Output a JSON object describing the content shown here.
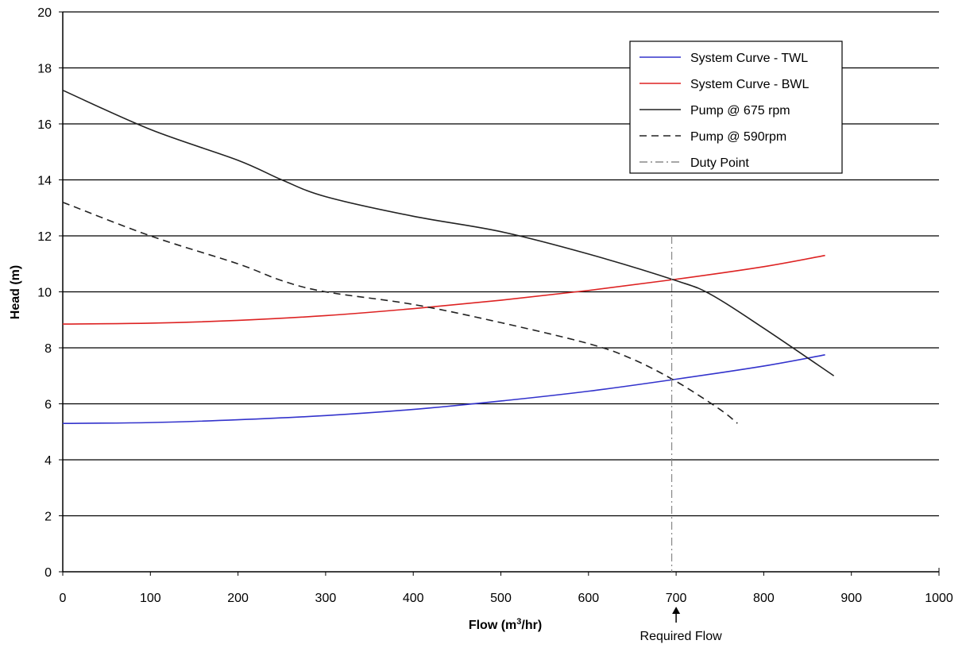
{
  "chart_data": {
    "type": "line",
    "title": "",
    "xlabel": {
      "prefix": "Flow (m",
      "sup": "3",
      "suffix": "/hr)"
    },
    "ylabel": "Head (m)",
    "xlim": [
      0,
      1000
    ],
    "ylim": [
      0,
      20
    ],
    "xticks": [
      0,
      100,
      200,
      300,
      400,
      500,
      600,
      700,
      800,
      900,
      1000
    ],
    "yticks": [
      0,
      2,
      4,
      6,
      8,
      10,
      12,
      14,
      16,
      18,
      20
    ],
    "grid": "horizontal",
    "legend_position": "top-right",
    "series": [
      {
        "name": "System Curve - TWL",
        "color": "#3333cc",
        "dash": "solid",
        "x": [
          0,
          100,
          200,
          300,
          400,
          500,
          600,
          700,
          800,
          870
        ],
        "y": [
          5.3,
          5.33,
          5.43,
          5.58,
          5.8,
          6.1,
          6.45,
          6.88,
          7.35,
          7.75
        ]
      },
      {
        "name": "System Curve - BWL",
        "color": "#dd2222",
        "dash": "solid",
        "x": [
          0,
          100,
          200,
          300,
          400,
          500,
          600,
          700,
          800,
          870
        ],
        "y": [
          8.85,
          8.88,
          8.98,
          9.15,
          9.4,
          9.7,
          10.05,
          10.45,
          10.9,
          11.3
        ]
      },
      {
        "name": "Pump @ 675 rpm",
        "color": "#222222",
        "dash": "solid",
        "x": [
          0,
          100,
          200,
          250,
          300,
          400,
          500,
          600,
          700,
          740,
          800,
          880
        ],
        "y": [
          17.2,
          15.8,
          14.7,
          14.0,
          13.4,
          12.7,
          12.15,
          11.35,
          10.4,
          9.9,
          8.7,
          7.0
        ]
      },
      {
        "name": "Pump @ 590rpm",
        "color": "#222222",
        "dash": "dashed",
        "x": [
          0,
          100,
          200,
          250,
          300,
          400,
          500,
          600,
          650,
          700,
          750,
          770
        ],
        "y": [
          13.2,
          12.0,
          11.0,
          10.4,
          10.0,
          9.55,
          8.9,
          8.15,
          7.6,
          6.8,
          5.8,
          5.3
        ]
      }
    ],
    "duty_point": {
      "name": "Duty Point",
      "x": 695,
      "y_top": 12.0,
      "color": "#888888",
      "dash": "dash-dot"
    },
    "annotation": {
      "text": "Required Flow",
      "x": 700
    }
  }
}
